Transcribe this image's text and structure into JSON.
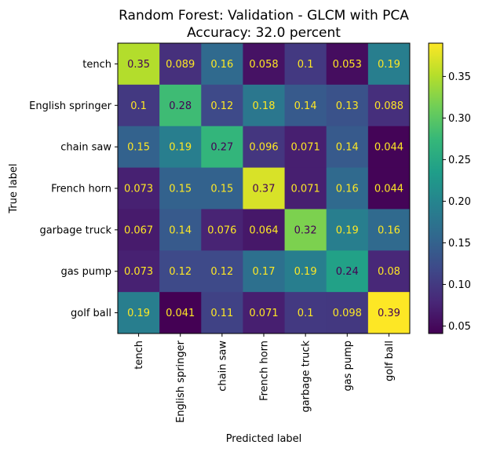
{
  "chart_data": {
    "type": "heatmap",
    "title_line1": "Random Forest: Validation - GLCM with PCA",
    "title_line2": "Accuracy: 32.0 percent",
    "xlabel": "Predicted label",
    "ylabel": "True label",
    "categories": [
      "tench",
      "English springer",
      "chain saw",
      "French horn",
      "garbage truck",
      "gas pump",
      "golf ball"
    ],
    "rows": [
      [
        0.35,
        0.089,
        0.16,
        0.058,
        0.1,
        0.053,
        0.19
      ],
      [
        0.1,
        0.28,
        0.12,
        0.18,
        0.14,
        0.13,
        0.088
      ],
      [
        0.15,
        0.19,
        0.27,
        0.096,
        0.071,
        0.14,
        0.044
      ],
      [
        0.073,
        0.15,
        0.15,
        0.37,
        0.071,
        0.16,
        0.044
      ],
      [
        0.067,
        0.14,
        0.076,
        0.064,
        0.32,
        0.19,
        0.16
      ],
      [
        0.073,
        0.12,
        0.12,
        0.17,
        0.19,
        0.24,
        0.08
      ],
      [
        0.19,
        0.041,
        0.11,
        0.071,
        0.1,
        0.098,
        0.39
      ]
    ],
    "labels": [
      [
        "0.35",
        "0.089",
        "0.16",
        "0.058",
        "0.1",
        "0.053",
        "0.19"
      ],
      [
        "0.1",
        "0.28",
        "0.12",
        "0.18",
        "0.14",
        "0.13",
        "0.088"
      ],
      [
        "0.15",
        "0.19",
        "0.27",
        "0.096",
        "0.071",
        "0.14",
        "0.044"
      ],
      [
        "0.073",
        "0.15",
        "0.15",
        "0.37",
        "0.071",
        "0.16",
        "0.044"
      ],
      [
        "0.067",
        "0.14",
        "0.076",
        "0.064",
        "0.32",
        "0.19",
        "0.16"
      ],
      [
        "0.073",
        "0.12",
        "0.12",
        "0.17",
        "0.19",
        "0.24",
        "0.08"
      ],
      [
        "0.19",
        "0.041",
        "0.11",
        "0.071",
        "0.1",
        "0.098",
        "0.39"
      ]
    ],
    "colormap": "viridis",
    "color_range": [
      0.041,
      0.39
    ],
    "colorbar_ticks": [
      "0.05",
      "0.10",
      "0.15",
      "0.20",
      "0.25",
      "0.30",
      "0.35"
    ],
    "colorbar_tick_values": [
      0.05,
      0.1,
      0.15,
      0.2,
      0.25,
      0.3,
      0.35
    ],
    "text_color_dark_cell": "#fde725",
    "text_color_light_cell": "#440154",
    "colors": {
      "viridis_stops": [
        "#440154",
        "#482878",
        "#3e4989",
        "#31688e",
        "#26828e",
        "#1f9e89",
        "#35b779",
        "#6ece58",
        "#b5de2b",
        "#fde725"
      ]
    }
  }
}
